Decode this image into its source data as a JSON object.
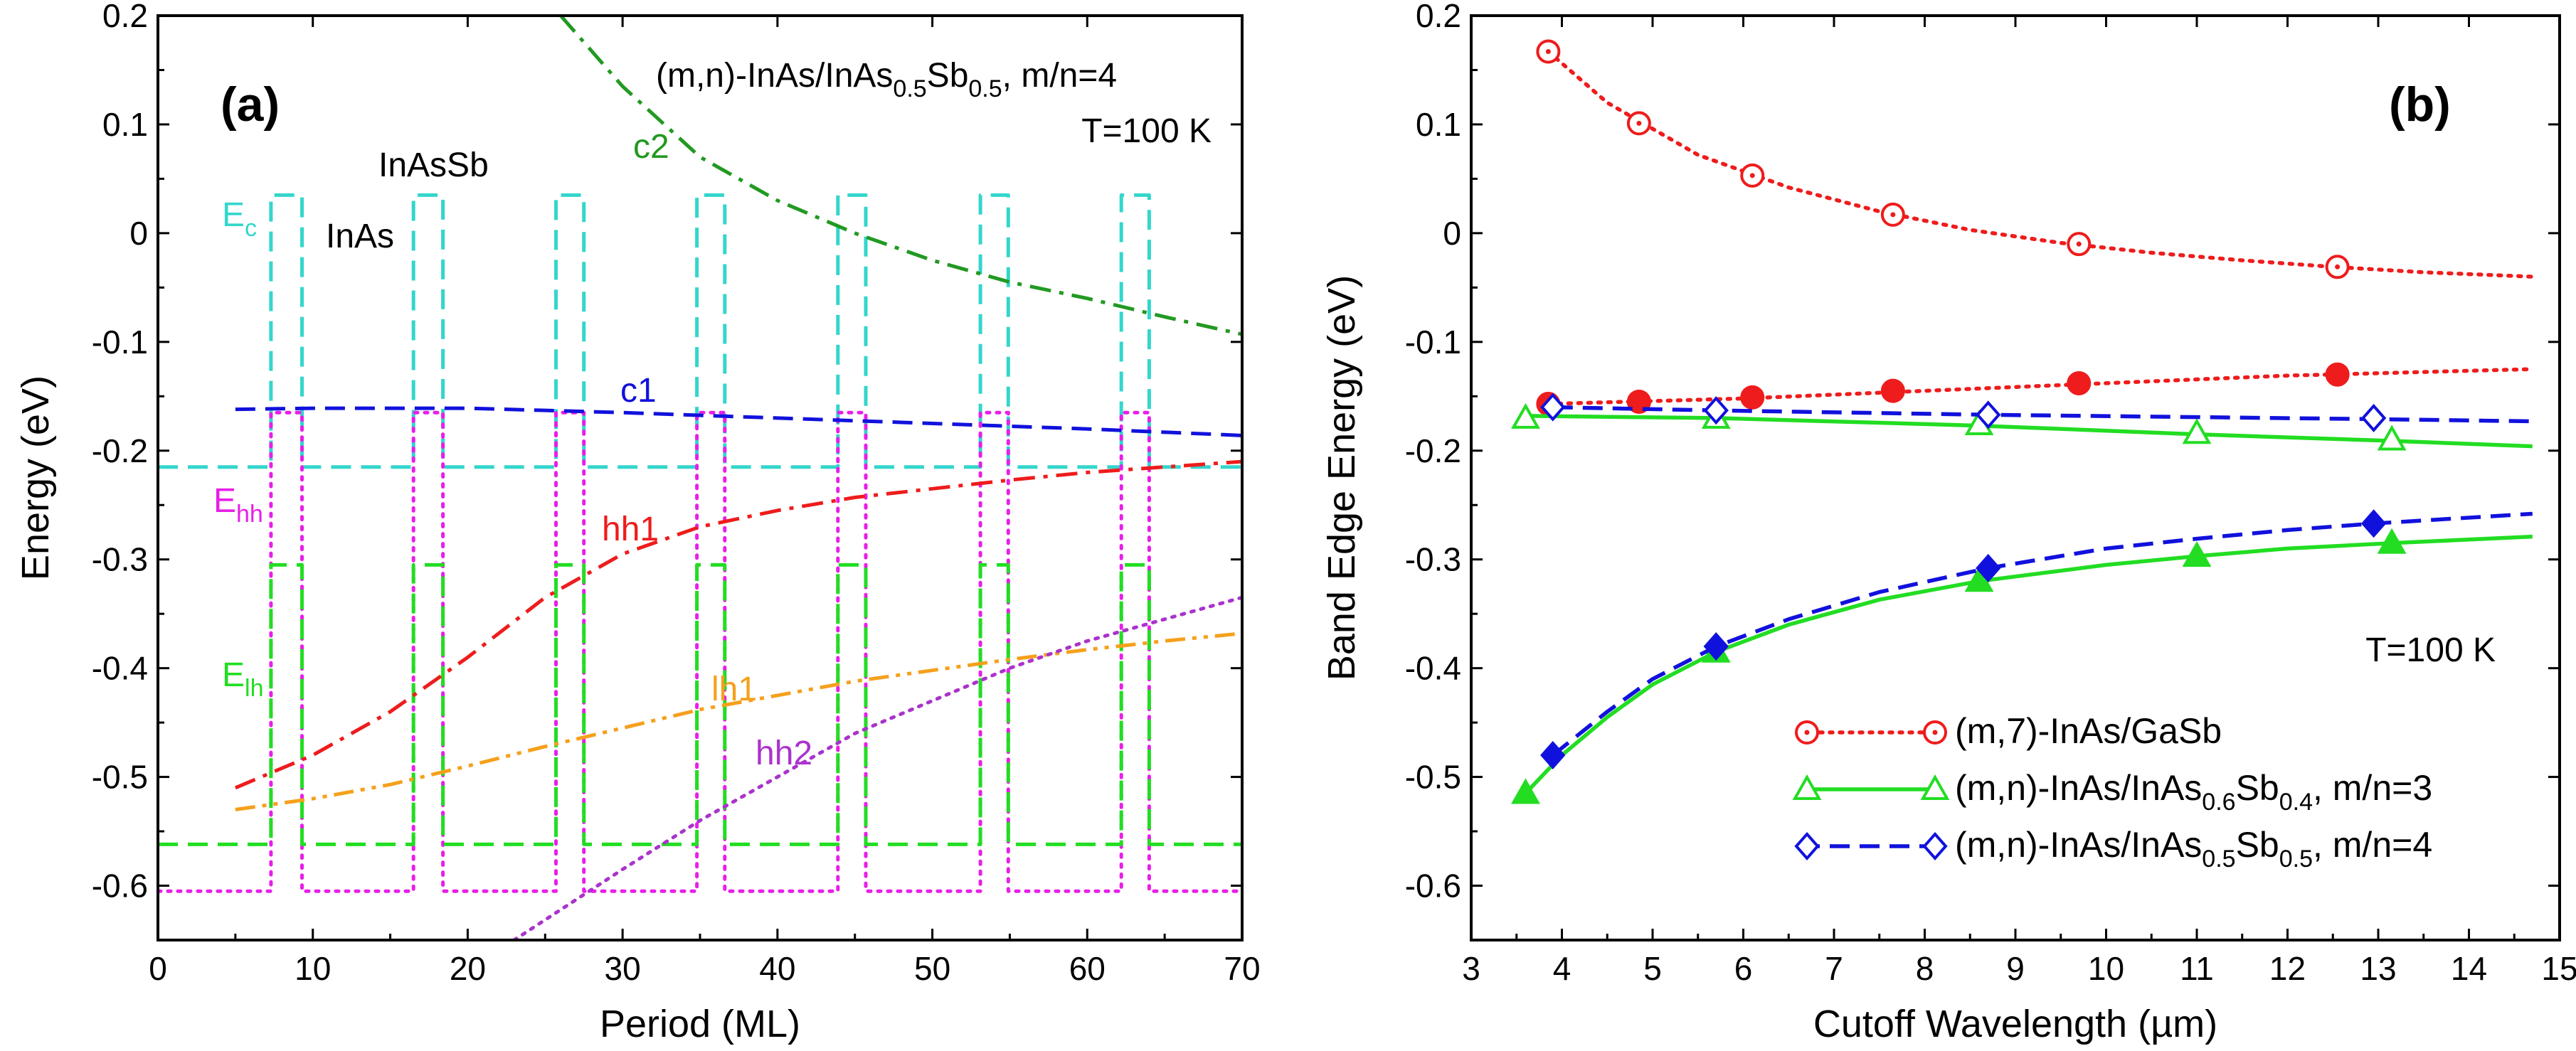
{
  "figure": {
    "panel_a": {
      "label": "(a)",
      "title_parts": [
        "(m,n)-InAs/InAs",
        "0.5",
        "Sb",
        "0.5",
        ", m/n=4"
      ],
      "temperature": "T=100 K",
      "annotations": {
        "c2": "c2",
        "c1": "c1",
        "hh1": "hh1",
        "lh1": "lh1",
        "hh2": "hh2",
        "inassb": "InAsSb",
        "inas": "InAs",
        "ec": [
          "E",
          "c"
        ],
        "ehh": [
          "E",
          "hh"
        ],
        "elh": [
          "E",
          "lh"
        ]
      }
    },
    "panel_b": {
      "label": "(b)",
      "temperature": "T=100 K",
      "legend": [
        {
          "parts": [
            "(m,7)-InAs/GaSb"
          ]
        },
        {
          "parts": [
            "(m,n)-InAs/InAs",
            "0.6",
            "Sb",
            "0.4",
            ", m/n=3"
          ]
        },
        {
          "parts": [
            "(m,n)-InAs/InAs",
            "0.5",
            "Sb",
            "0.5",
            ", m/n=4"
          ]
        }
      ]
    }
  },
  "colors": {
    "red": "#ee1c1c",
    "green": "#22dd22",
    "blue": "#1111dd",
    "cyan": "#33d6cc",
    "magenta": "#e81ee8",
    "orange": "#f5a01c",
    "darkgreen": "#229922",
    "purple": "#aa33cc"
  },
  "chart_data": [
    {
      "type": "line",
      "panel": "a",
      "xlabel": "Period (ML)",
      "ylabel": "Energy (eV)",
      "xlim": [
        0,
        70
      ],
      "ylim": [
        -0.65,
        0.2
      ],
      "xticks": [
        0,
        10,
        20,
        30,
        40,
        50,
        60,
        70
      ],
      "yticks": [
        0.2,
        0.1,
        0,
        -0.1,
        -0.2,
        -0.3,
        -0.4,
        -0.5,
        -0.6
      ],
      "ytick_labels": [
        "0.2",
        "0.1",
        "0",
        "-0.1",
        "-0.2",
        "-0.3",
        "-0.4",
        "-0.5",
        "-0.6"
      ],
      "series": [
        {
          "name": "c2",
          "style": "dashdot",
          "color": "darkgreen",
          "x": [
            26,
            30,
            35,
            40,
            45,
            50,
            55,
            60,
            65,
            70
          ],
          "y": [
            0.2,
            0.135,
            0.07,
            0.03,
            0.0,
            -0.025,
            -0.045,
            -0.06,
            -0.077,
            -0.093
          ]
        },
        {
          "name": "c1",
          "style": "dashed",
          "color": "blue",
          "x": [
            5,
            10,
            20,
            30,
            40,
            50,
            60,
            70
          ],
          "y": [
            -0.162,
            -0.161,
            -0.161,
            -0.165,
            -0.17,
            -0.175,
            -0.18,
            -0.186
          ]
        },
        {
          "name": "hh1",
          "style": "dashdot",
          "color": "red",
          "x": [
            5,
            10,
            15,
            20,
            25,
            30,
            35,
            40,
            45,
            50,
            55,
            60,
            65,
            70
          ],
          "y": [
            -0.51,
            -0.48,
            -0.44,
            -0.39,
            -0.335,
            -0.295,
            -0.27,
            -0.255,
            -0.243,
            -0.235,
            -0.227,
            -0.22,
            -0.215,
            -0.21
          ]
        },
        {
          "name": "lh1",
          "style": "dashdotdot",
          "color": "orange",
          "x": [
            5,
            10,
            15,
            20,
            25,
            30,
            35,
            40,
            45,
            50,
            55,
            60,
            65,
            70
          ],
          "y": [
            -0.53,
            -0.52,
            -0.507,
            -0.49,
            -0.472,
            -0.455,
            -0.438,
            -0.425,
            -0.412,
            -0.402,
            -0.392,
            -0.383,
            -0.375,
            -0.368
          ]
        },
        {
          "name": "hh2",
          "style": "dotted",
          "color": "purple",
          "x": [
            23,
            30,
            35,
            40,
            45,
            50,
            55,
            60,
            65,
            70
          ],
          "y": [
            -0.65,
            -0.585,
            -0.54,
            -0.5,
            -0.46,
            -0.43,
            -0.4,
            -0.375,
            -0.355,
            -0.335
          ]
        },
        {
          "name": "Ec",
          "style": "dashed",
          "color": "cyan",
          "profile": "conduction",
          "x": [
            0,
            7.3,
            7.3,
            9.3,
            9.3,
            16.5,
            16.5,
            18.4,
            18.4,
            25.7,
            25.7,
            27.5,
            27.5,
            34.8,
            34.8,
            36.6,
            36.6,
            43.9,
            43.9,
            45.7,
            45.7,
            53.1,
            53.1,
            54.9,
            54.9,
            62.2,
            62.2,
            64.0,
            64.0,
            70
          ],
          "y": [
            -0.215,
            -0.215,
            0.035,
            0.035,
            -0.215,
            -0.215,
            0.035,
            0.035,
            -0.215,
            -0.215,
            0.035,
            0.035,
            -0.215,
            -0.215,
            0.035,
            0.035,
            -0.215,
            -0.215,
            0.035,
            0.035,
            -0.215,
            -0.215,
            0.035,
            0.035,
            -0.215,
            -0.215,
            0.035,
            0.035,
            -0.215,
            -0.215
          ]
        },
        {
          "name": "Ehh",
          "style": "dotted",
          "color": "magenta",
          "profile": "heavy-hole",
          "x": [
            0,
            7.3,
            7.3,
            9.3,
            9.3,
            16.5,
            16.5,
            18.4,
            18.4,
            25.7,
            25.7,
            27.5,
            27.5,
            34.8,
            34.8,
            36.6,
            36.6,
            43.9,
            43.9,
            45.7,
            45.7,
            53.1,
            53.1,
            54.9,
            54.9,
            62.2,
            62.2,
            64.0,
            64.0,
            70
          ],
          "y": [
            -0.605,
            -0.605,
            -0.165,
            -0.165,
            -0.605,
            -0.605,
            -0.165,
            -0.165,
            -0.605,
            -0.605,
            -0.165,
            -0.165,
            -0.605,
            -0.605,
            -0.165,
            -0.165,
            -0.605,
            -0.605,
            -0.165,
            -0.165,
            -0.605,
            -0.605,
            -0.165,
            -0.165,
            -0.605,
            -0.605,
            -0.165,
            -0.165,
            -0.605,
            -0.605
          ]
        },
        {
          "name": "Elh",
          "style": "dashed",
          "color": "green",
          "profile": "light-hole",
          "x": [
            0,
            7.3,
            7.3,
            9.3,
            9.3,
            16.5,
            16.5,
            18.4,
            18.4,
            25.7,
            25.7,
            27.5,
            27.5,
            34.8,
            34.8,
            36.6,
            36.6,
            43.9,
            43.9,
            45.7,
            45.7,
            53.1,
            53.1,
            54.9,
            54.9,
            62.2,
            62.2,
            64.0,
            64.0,
            70
          ],
          "y": [
            -0.562,
            -0.562,
            -0.305,
            -0.305,
            -0.562,
            -0.562,
            -0.305,
            -0.305,
            -0.562,
            -0.562,
            -0.305,
            -0.305,
            -0.562,
            -0.562,
            -0.305,
            -0.305,
            -0.562,
            -0.562,
            -0.305,
            -0.305,
            -0.562,
            -0.562,
            -0.305,
            -0.305,
            -0.562,
            -0.562,
            -0.305,
            -0.305,
            -0.562,
            -0.562
          ]
        }
      ]
    },
    {
      "type": "scatter",
      "panel": "b",
      "xlabel": "Cutoff Wavelength (µm)",
      "ylabel": "Band Edge Energy (eV)",
      "xlim": [
        3,
        15
      ],
      "ylim": [
        -0.65,
        0.2
      ],
      "xticks": [
        3,
        4,
        5,
        6,
        7,
        8,
        9,
        10,
        11,
        12,
        13,
        14,
        15
      ],
      "yticks": [
        0.2,
        0.1,
        0,
        -0.1,
        -0.2,
        -0.3,
        -0.4,
        -0.5,
        -0.6
      ],
      "ytick_labels": [
        "0.2",
        "0.1",
        "0",
        "-0.1",
        "-0.2",
        "-0.3",
        "-0.4",
        "-0.5",
        "-0.6"
      ],
      "series": [
        {
          "name": "(m,7)-InAs/GaSb conduction",
          "color": "red",
          "style": "dotted",
          "marker": "circle-dot",
          "points_x": [
            3.85,
            4.85,
            6.1,
            7.65,
            9.7,
            12.55
          ],
          "points_y": [
            0.167,
            0.101,
            0.053,
            0.017,
            -0.01,
            -0.031
          ],
          "curve_x": [
            3.85,
            4.5,
            5.5,
            6.5,
            7.5,
            8.5,
            9.5,
            10.5,
            11.5,
            12.5,
            13.5,
            14.7
          ],
          "curve_y": [
            0.167,
            0.12,
            0.072,
            0.042,
            0.02,
            0.003,
            -0.009,
            -0.018,
            -0.025,
            -0.031,
            -0.036,
            -0.04
          ]
        },
        {
          "name": "(m,7)-InAs/GaSb valence",
          "color": "red",
          "style": "dotted",
          "marker": "filled-circle",
          "points_x": [
            3.85,
            4.85,
            6.1,
            7.65,
            9.7,
            12.55
          ],
          "points_y": [
            -0.157,
            -0.155,
            -0.151,
            -0.145,
            -0.138,
            -0.13
          ],
          "curve_x": [
            3.85,
            6,
            8,
            10,
            12,
            14.7
          ],
          "curve_y": [
            -0.157,
            -0.152,
            -0.145,
            -0.138,
            -0.131,
            -0.125
          ]
        },
        {
          "name": "(m,n)-InAs/InAs0.6Sb0.4 conduction",
          "color": "green",
          "style": "solid",
          "marker": "open-triangle",
          "points_x": [
            3.6,
            5.7,
            8.6,
            11.0,
            13.15
          ],
          "points_y": [
            -0.17,
            -0.17,
            -0.176,
            -0.184,
            -0.19
          ],
          "curve_x": [
            3.6,
            5.7,
            8.6,
            11.0,
            13.15,
            14.7
          ],
          "curve_y": [
            -0.168,
            -0.17,
            -0.177,
            -0.185,
            -0.191,
            -0.196
          ]
        },
        {
          "name": "(m,n)-InAs/InAs0.6Sb0.4 valence",
          "color": "green",
          "style": "solid",
          "marker": "filled-triangle",
          "points_x": [
            3.6,
            5.7,
            8.6,
            11.0,
            13.15
          ],
          "points_y": [
            -0.515,
            -0.385,
            -0.32,
            -0.297,
            -0.285
          ],
          "curve_x": [
            3.6,
            4.0,
            4.5,
            5.0,
            5.7,
            6.5,
            7.5,
            8.6,
            10.0,
            11.0,
            12.0,
            13.15,
            14.7
          ],
          "curve_y": [
            -0.515,
            -0.48,
            -0.445,
            -0.415,
            -0.385,
            -0.36,
            -0.337,
            -0.32,
            -0.305,
            -0.297,
            -0.29,
            -0.285,
            -0.279
          ]
        },
        {
          "name": "(m,n)-InAs/InAs0.5Sb0.5 conduction",
          "color": "blue",
          "style": "dashed",
          "marker": "open-diamond",
          "points_x": [
            3.9,
            5.7,
            8.7,
            12.95
          ],
          "points_y": [
            -0.16,
            -0.163,
            -0.167,
            -0.17
          ],
          "curve_x": [
            3.9,
            5.7,
            8.7,
            12.95,
            14.7
          ],
          "curve_y": [
            -0.16,
            -0.163,
            -0.167,
            -0.171,
            -0.173
          ]
        },
        {
          "name": "(m,n)-InAs/InAs0.5Sb0.5 valence",
          "color": "blue",
          "style": "dashed",
          "marker": "filled-diamond",
          "points_x": [
            3.9,
            5.7,
            8.7,
            12.95
          ],
          "points_y": [
            -0.48,
            -0.38,
            -0.308,
            -0.267
          ],
          "curve_x": [
            3.9,
            4.5,
            5.0,
            5.7,
            6.5,
            7.5,
            8.7,
            10.0,
            11.0,
            12.0,
            12.95,
            14.7
          ],
          "curve_y": [
            -0.48,
            -0.44,
            -0.41,
            -0.38,
            -0.355,
            -0.33,
            -0.308,
            -0.29,
            -0.281,
            -0.273,
            -0.267,
            -0.258
          ]
        }
      ]
    }
  ]
}
